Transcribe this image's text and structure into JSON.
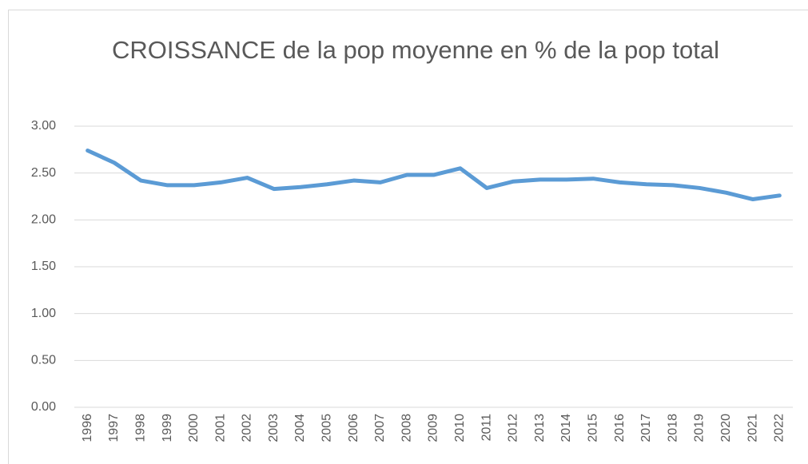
{
  "chart_data": {
    "type": "line",
    "title": "CROISSANCE de la pop moyenne en % de la pop total",
    "categories": [
      "1996",
      "1997",
      "1998",
      "1999",
      "2000",
      "2001",
      "2002",
      "2003",
      "2004",
      "2005",
      "2006",
      "2007",
      "2008",
      "2009",
      "2010",
      "2011",
      "2012",
      "2013",
      "2014",
      "2015",
      "2016",
      "2017",
      "2018",
      "2019",
      "2020",
      "2021",
      "2022"
    ],
    "series": [
      {
        "name": "CROISSANCE",
        "color": "#5b9bd5",
        "values": [
          2.74,
          2.61,
          2.42,
          2.37,
          2.37,
          2.4,
          2.45,
          2.33,
          2.35,
          2.38,
          2.42,
          2.4,
          2.48,
          2.48,
          2.55,
          2.34,
          2.41,
          2.43,
          2.43,
          2.44,
          2.4,
          2.38,
          2.37,
          2.34,
          2.29,
          2.22,
          2.26
        ]
      }
    ],
    "ylim": [
      0,
      3
    ],
    "yticks": [
      {
        "value": 0,
        "label": "0.00"
      },
      {
        "value": 0.5,
        "label": "0.50"
      },
      {
        "value": 1,
        "label": "1.00"
      },
      {
        "value": 1.5,
        "label": "1.50"
      },
      {
        "value": 2,
        "label": "2.00"
      },
      {
        "value": 2.5,
        "label": "2.50"
      },
      {
        "value": 3,
        "label": "3.00"
      }
    ],
    "grid": true
  }
}
